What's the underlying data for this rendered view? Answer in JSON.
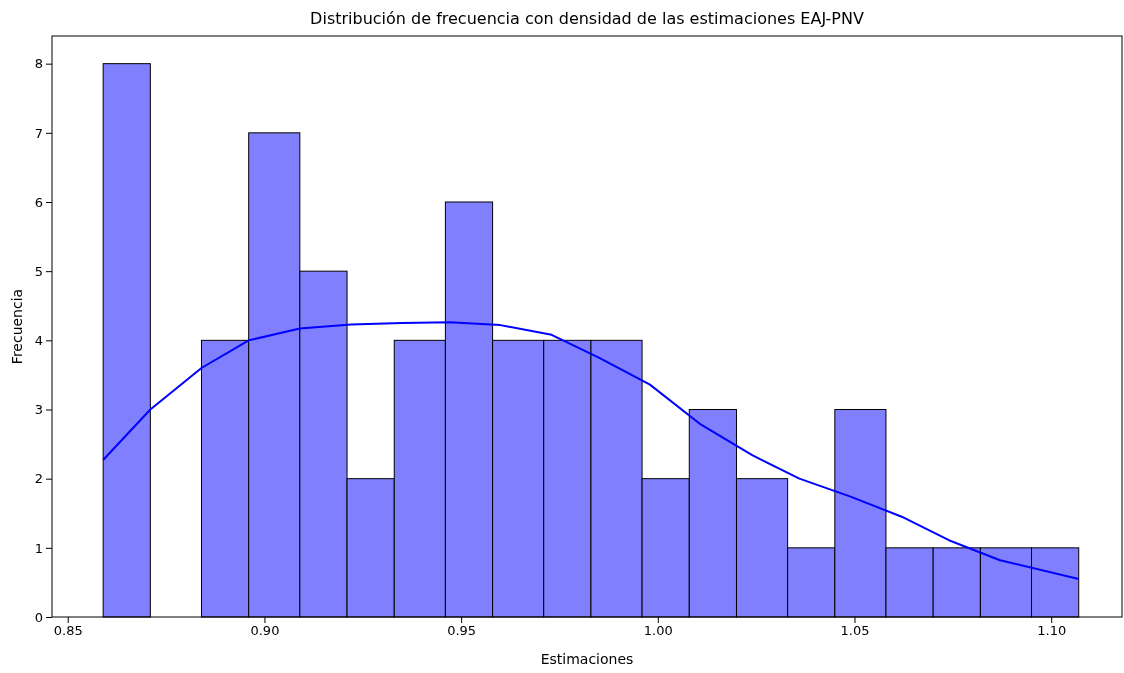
{
  "chart_data": {
    "type": "histogram",
    "title": "Distribución de frecuencia con densidad de las estimaciones EAJ-PNV",
    "xlabel": "Estimaciones",
    "ylabel": "Frecuencia",
    "bins": [
      0.859,
      0.871,
      0.884,
      0.896,
      0.909,
      0.921,
      0.933,
      0.946,
      0.958,
      0.971,
      0.983,
      0.996,
      1.008,
      1.02,
      1.033,
      1.045,
      1.058,
      1.07,
      1.082,
      1.095,
      1.107
    ],
    "values": [
      8,
      0,
      4,
      7,
      5,
      2,
      4,
      6,
      4,
      4,
      4,
      2,
      3,
      2,
      1,
      3,
      1,
      1,
      1,
      1
    ],
    "color": "#8080ff",
    "series": [
      {
        "type": "line",
        "color": "#0000ff",
        "x": [
          0.859,
          0.871,
          0.884,
          0.896,
          0.909,
          0.922,
          0.935,
          0.947,
          0.96,
          0.973,
          0.985,
          0.998,
          1.011,
          1.024,
          1.036,
          1.049,
          1.062,
          1.074,
          1.087,
          1.107
        ],
        "values": [
          2.27,
          3.0,
          3.6,
          4.0,
          4.17,
          4.23,
          4.25,
          4.26,
          4.22,
          4.08,
          3.75,
          3.36,
          2.78,
          2.34,
          2.0,
          1.74,
          1.45,
          1.11,
          0.82,
          0.55
        ]
      }
    ],
    "xlim": [
      0.846,
      1.118
    ],
    "ylim": [
      0,
      8.4
    ],
    "xticks": [
      {
        "value": 0.85,
        "label": "0.85"
      },
      {
        "value": 0.9,
        "label": "0.90"
      },
      {
        "value": 0.95,
        "label": "0.95"
      },
      {
        "value": 1.0,
        "label": "1.00"
      },
      {
        "value": 1.05,
        "label": "1.05"
      },
      {
        "value": 1.1,
        "label": "1.10"
      }
    ],
    "yticks": [
      0,
      1,
      2,
      3,
      4,
      5,
      6,
      7,
      8
    ],
    "grid": false
  }
}
